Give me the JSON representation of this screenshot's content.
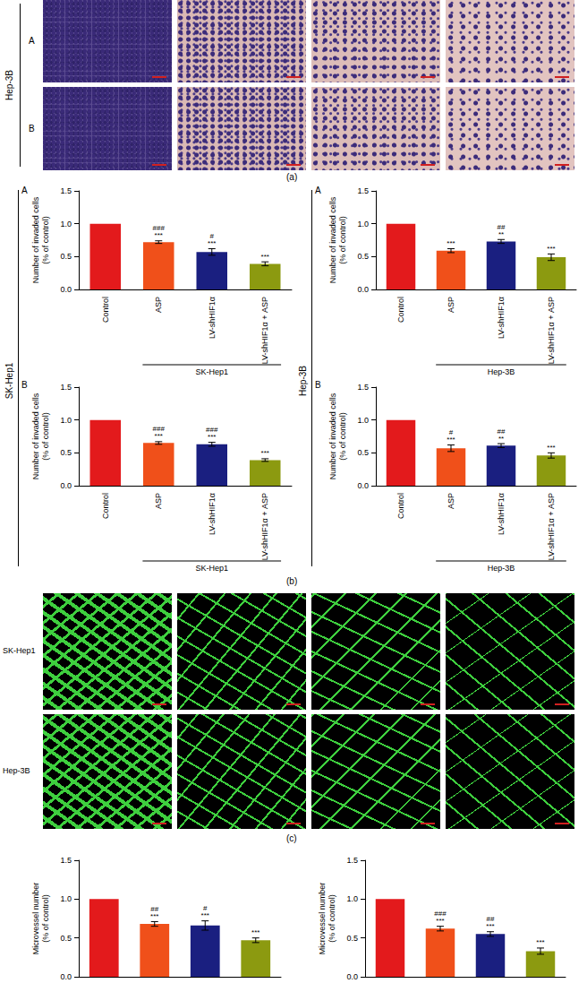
{
  "figure": {
    "panel_a": {
      "label": "(a)",
      "row_group": "Hep-3B",
      "rows": [
        "A",
        "B"
      ]
    },
    "panel_b": {
      "label": "(b)",
      "side_groups": [
        {
          "group": "SK-Hep1",
          "rows": [
            "A",
            "B"
          ]
        },
        {
          "group": "Hep-3B",
          "rows": [
            "A",
            "B"
          ]
        }
      ]
    },
    "panel_c": {
      "label": "(c)",
      "rows": [
        "SK-Hep1",
        "Hep-3B"
      ]
    }
  },
  "chart_data": [
    {
      "type": "bar",
      "categories": [
        "Control",
        "ASP",
        "LV-shHIF1α",
        "LV-shHIF1α + ASP"
      ],
      "values": [
        1,
        0.72,
        0.57,
        0.39
      ],
      "errors": [
        null,
        0.02,
        0.05,
        0.03
      ],
      "significance": [
        null,
        "###\n***",
        "#\n***",
        "***"
      ],
      "colors": [
        "#e31a1c",
        "#f0501a",
        "#1a1f80",
        "#8c9a10"
      ],
      "ylim": [
        0,
        1.5
      ],
      "yticks": [
        {
          "value": 0,
          "label": "0.0"
        },
        {
          "value": 0.5,
          "label": "0.5"
        },
        {
          "value": 1,
          "label": "1.0"
        },
        {
          "value": 1.5,
          "label": "1.5"
        }
      ],
      "y_label": "Number of invaded cells\n(% of control)",
      "group_label": "SK-Hep1"
    },
    {
      "type": "bar",
      "categories": [
        "Control",
        "ASP",
        "LV-shHIF1α",
        "LV-shHIF1α + ASP"
      ],
      "values": [
        1,
        0.59,
        0.73,
        0.49
      ],
      "errors": [
        null,
        0.03,
        0.03,
        0.05
      ],
      "significance": [
        null,
        "***",
        "##\n**",
        "***"
      ],
      "colors": [
        "#e31a1c",
        "#f0501a",
        "#1a1f80",
        "#8c9a10"
      ],
      "ylim": [
        0,
        1.5
      ],
      "yticks": [
        {
          "value": 0,
          "label": "0.0"
        },
        {
          "value": 0.5,
          "label": "0.5"
        },
        {
          "value": 1,
          "label": "1.0"
        },
        {
          "value": 1.5,
          "label": "1.5"
        }
      ],
      "y_label": "Number of invaded cells\n(% of control)",
      "group_label": "Hep-3B"
    },
    {
      "type": "bar",
      "categories": [
        "Control",
        "ASP",
        "LV-shHIF1α",
        "LV-shHIF1α + ASP"
      ],
      "values": [
        1,
        0.65,
        0.63,
        0.39
      ],
      "errors": [
        null,
        0.02,
        0.03,
        0.02
      ],
      "significance": [
        null,
        "###\n***",
        "###\n***",
        "***"
      ],
      "colors": [
        "#e31a1c",
        "#f0501a",
        "#1a1f80",
        "#8c9a10"
      ],
      "ylim": [
        0,
        1.5
      ],
      "yticks": [
        {
          "value": 0,
          "label": "0.0"
        },
        {
          "value": 0.5,
          "label": "0.5"
        },
        {
          "value": 1,
          "label": "1.0"
        },
        {
          "value": 1.5,
          "label": "1.5"
        }
      ],
      "y_label": "Number of invaded cells\n(% of control)",
      "group_label": "SK-Hep1"
    },
    {
      "type": "bar",
      "categories": [
        "Control",
        "ASP",
        "LV-shHIF1α",
        "LV-shHIF1α + ASP"
      ],
      "values": [
        1,
        0.57,
        0.61,
        0.46
      ],
      "errors": [
        null,
        0.05,
        0.03,
        0.04
      ],
      "significance": [
        null,
        "#\n***",
        "##\n**",
        "***"
      ],
      "colors": [
        "#e31a1c",
        "#f0501a",
        "#1a1f80",
        "#8c9a10"
      ],
      "ylim": [
        0,
        1.5
      ],
      "yticks": [
        {
          "value": 0,
          "label": "0.0"
        },
        {
          "value": 0.5,
          "label": "0.5"
        },
        {
          "value": 1,
          "label": "1.0"
        },
        {
          "value": 1.5,
          "label": "1.5"
        }
      ],
      "y_label": "Number of invaded cells\n(% of control)",
      "group_label": "Hep-3B"
    },
    {
      "type": "bar",
      "categories": [
        null,
        null,
        null,
        null
      ],
      "values": [
        1,
        0.68,
        0.66,
        0.47
      ],
      "errors": [
        null,
        0.03,
        0.06,
        0.03
      ],
      "significance": [
        null,
        "##\n***",
        "#\n***",
        "***"
      ],
      "colors": [
        "#e31a1c",
        "#f0501a",
        "#1a1f80",
        "#8c9a10"
      ],
      "ylim": [
        0,
        1.5
      ],
      "yticks": [
        {
          "value": 0,
          "label": "0.0"
        },
        {
          "value": 0.5,
          "label": "0.5"
        },
        {
          "value": 1,
          "label": "1.0"
        },
        {
          "value": 1.5,
          "label": "1.5"
        }
      ],
      "y_label": "Microvessel number\n(% of control)"
    },
    {
      "type": "bar",
      "categories": [
        null,
        null,
        null,
        null
      ],
      "values": [
        1,
        0.62,
        0.55,
        0.33
      ],
      "errors": [
        null,
        0.03,
        0.03,
        0.04
      ],
      "significance": [
        null,
        "###\n***",
        "##\n***",
        "***"
      ],
      "colors": [
        "#e31a1c",
        "#f0501a",
        "#1a1f80",
        "#8c9a10"
      ],
      "ylim": [
        0,
        1.5
      ],
      "yticks": [
        {
          "value": 0,
          "label": "0.0"
        },
        {
          "value": 0.5,
          "label": "0.5"
        },
        {
          "value": 1,
          "label": "1.0"
        },
        {
          "value": 1.5,
          "label": "1.5"
        }
      ],
      "y_label": "Microvessel number\n(% of control)"
    }
  ]
}
